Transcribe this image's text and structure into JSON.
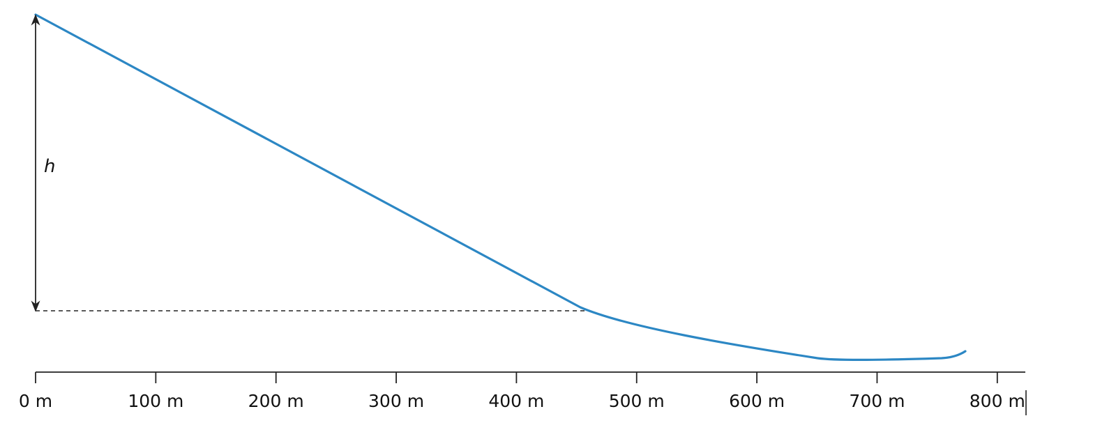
{
  "diagram": {
    "height_label": "h",
    "colors": {
      "profile": "#2c87c4",
      "axis": "#222222",
      "text": "#111111"
    },
    "axis": {
      "unit": "m",
      "ticks": [
        {
          "value": 0,
          "label": "0 m"
        },
        {
          "value": 100,
          "label": "100 m"
        },
        {
          "value": 200,
          "label": "200 m"
        },
        {
          "value": 300,
          "label": "300 m"
        },
        {
          "value": 400,
          "label": "400 m"
        },
        {
          "value": 500,
          "label": "500 m"
        },
        {
          "value": 600,
          "label": "600 m"
        },
        {
          "value": 700,
          "label": "700 m"
        },
        {
          "value": 800,
          "label": "800 m"
        }
      ]
    }
  }
}
